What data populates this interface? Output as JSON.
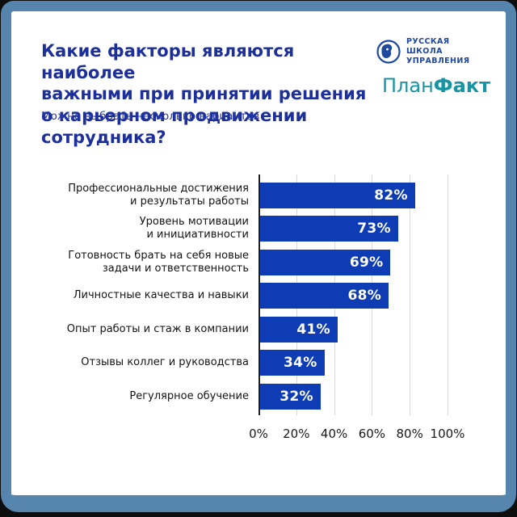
{
  "frame": {
    "border_color": "#5584ac",
    "card_background": "#ffffff",
    "outer_background": "#0d0d0d"
  },
  "header": {
    "title": "Какие факторы являются наиболее\nважными при принятии решения\nо карьерном продвижении сотрудника?",
    "subtitle": "Можно выбрать несколько вариантов",
    "title_color": "#1c2f9b"
  },
  "logos": {
    "rsu": {
      "text": "РУССКАЯ\nШКОЛА\nУПРАВЛЕНИЯ",
      "color": "#1f48a0",
      "icon": "globe-face-icon"
    },
    "planfact": {
      "part1": "План",
      "part2": "Факт",
      "color": "#1795a5"
    }
  },
  "chart_data": {
    "type": "bar",
    "orientation": "horizontal",
    "title": "Какие факторы являются наиболее важными при принятии решения о карьерном продвижении сотрудника?",
    "subtitle": "Можно выбрать несколько вариантов",
    "categories": [
      "Профессиональные достижения\nи результаты работы",
      "Уровень мотивации\nи инициативности",
      "Готовность брать на себя новые\nзадачи и ответственность",
      "Личностные качества и навыки",
      "Опыт работы и стаж в компании",
      "Отзывы коллег и руководства",
      "Регулярное обучение"
    ],
    "values": [
      82,
      73,
      69,
      68,
      41,
      34,
      32
    ],
    "value_labels": [
      "82%",
      "73%",
      "69%",
      "68%",
      "41%",
      "34%",
      "32%"
    ],
    "x_ticks": [
      "0%",
      "20%",
      "40%",
      "60%",
      "80%",
      "100%"
    ],
    "xlim": [
      0,
      100
    ],
    "bar_color": "#0d3cb5",
    "grid": true,
    "gridline_color": "#d9d9d9",
    "value_label_position": "inside-end",
    "legend": "none"
  }
}
